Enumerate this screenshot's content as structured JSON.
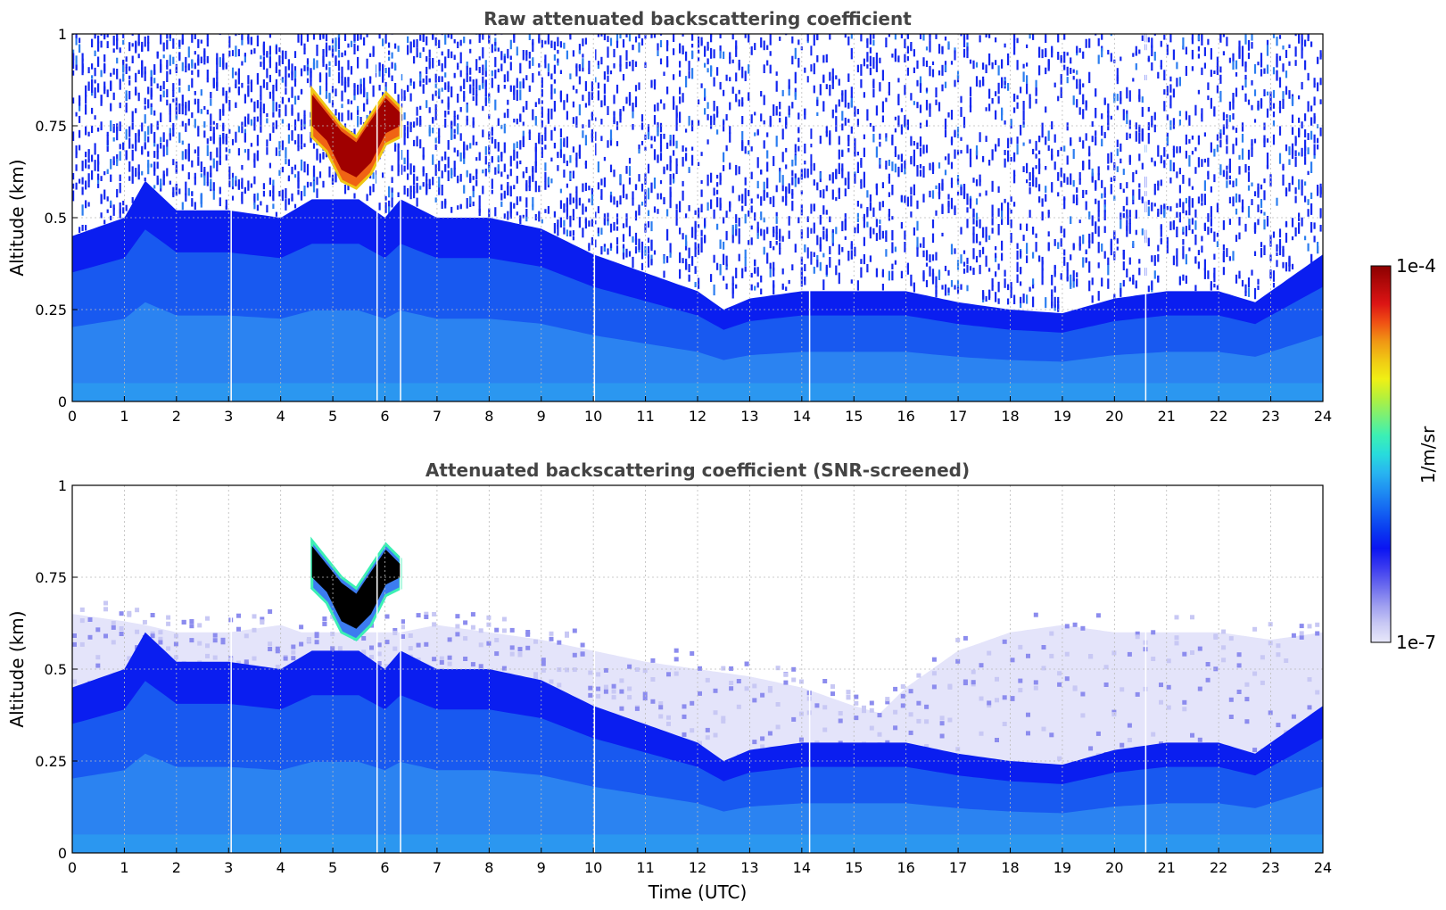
{
  "chart_data": [
    {
      "type": "heatmap",
      "title": "Raw attenuated backscattering coefficient",
      "xlabel": "",
      "ylabel": "Altitude (km)",
      "xlim": [
        0,
        24
      ],
      "ylim": [
        0,
        1
      ],
      "xticks": [
        0,
        1,
        2,
        3,
        4,
        5,
        6,
        7,
        8,
        9,
        10,
        11,
        12,
        13,
        14,
        15,
        16,
        17,
        18,
        19,
        20,
        21,
        22,
        23,
        24
      ],
      "yticks": [
        0,
        0.25,
        0.5,
        0.75,
        1
      ],
      "ytick_labels": [
        "0",
        "0.25",
        "0.5",
        "0.75",
        "1"
      ],
      "grid": true,
      "noise_above_layer": true,
      "boundary_layer_top_km": {
        "time": [
          0,
          1,
          1.4,
          2,
          3,
          4,
          4.6,
          5,
          5.5,
          6,
          6.3,
          7,
          8,
          9,
          10,
          11,
          12,
          12.5,
          13,
          14,
          15,
          16,
          17,
          18,
          19,
          20,
          21,
          22,
          22.7,
          23,
          24
        ],
        "height": [
          0.45,
          0.5,
          0.6,
          0.52,
          0.52,
          0.5,
          0.55,
          0.55,
          0.55,
          0.5,
          0.55,
          0.5,
          0.5,
          0.47,
          0.4,
          0.35,
          0.3,
          0.25,
          0.28,
          0.3,
          0.3,
          0.3,
          0.27,
          0.25,
          0.24,
          0.28,
          0.3,
          0.3,
          0.27,
          0.3,
          0.4
        ]
      },
      "cloud": {
        "time_start": 4.6,
        "time_end": 6.3,
        "top_km": [
          0.85,
          0.8,
          0.75,
          0.72,
          0.78,
          0.84,
          0.8
        ],
        "base_km": [
          0.72,
          0.68,
          0.6,
          0.58,
          0.62,
          0.7,
          0.72
        ]
      },
      "data_gaps_utc": [
        3.05,
        5.85,
        6.3,
        10.02,
        14.15,
        20.6
      ]
    },
    {
      "type": "heatmap",
      "title": "Attenuated backscattering coefficient (SNR-screened)",
      "xlabel": "Time (UTC)",
      "ylabel": "Altitude (km)",
      "xlim": [
        0,
        24
      ],
      "ylim": [
        0,
        1
      ],
      "xticks": [
        0,
        1,
        2,
        3,
        4,
        5,
        6,
        7,
        8,
        9,
        10,
        11,
        12,
        13,
        14,
        15,
        16,
        17,
        18,
        19,
        20,
        21,
        22,
        23,
        24
      ],
      "yticks": [
        0,
        0.25,
        0.5,
        0.75,
        1
      ],
      "ytick_labels": [
        "0",
        "0.25",
        "0.5",
        "0.75",
        "1"
      ],
      "grid": true,
      "noise_above_layer": false,
      "residual_layer_km": {
        "time": [
          0,
          1,
          1.4,
          2,
          3,
          4,
          4.4,
          6.3,
          7,
          8,
          9,
          10,
          11,
          12,
          13,
          14,
          15,
          15.5,
          16,
          17,
          18,
          19,
          20,
          21,
          22,
          23,
          24
        ],
        "height": [
          0.65,
          0.63,
          0.62,
          0.6,
          0.6,
          0.62,
          0.6,
          0.6,
          0.62,
          0.6,
          0.58,
          0.55,
          0.52,
          0.5,
          0.48,
          0.45,
          0.4,
          0.38,
          0.45,
          0.55,
          0.6,
          0.62,
          0.6,
          0.6,
          0.6,
          0.58,
          0.6
        ]
      },
      "boundary_layer_top_km": {
        "time": [
          0,
          1,
          1.4,
          2,
          3,
          4,
          4.6,
          5,
          5.5,
          6,
          6.3,
          7,
          8,
          9,
          10,
          11,
          12,
          12.5,
          13,
          14,
          15,
          16,
          17,
          18,
          19,
          20,
          21,
          22,
          22.7,
          23,
          24
        ],
        "height": [
          0.45,
          0.5,
          0.6,
          0.52,
          0.52,
          0.5,
          0.55,
          0.55,
          0.55,
          0.5,
          0.55,
          0.5,
          0.5,
          0.47,
          0.4,
          0.35,
          0.3,
          0.25,
          0.28,
          0.3,
          0.3,
          0.3,
          0.27,
          0.25,
          0.24,
          0.28,
          0.3,
          0.3,
          0.27,
          0.3,
          0.4
        ]
      },
      "cloud": {
        "time_start": 4.6,
        "time_end": 6.3,
        "top_km": [
          0.85,
          0.8,
          0.75,
          0.72,
          0.78,
          0.84,
          0.8
        ],
        "base_km": [
          0.72,
          0.68,
          0.6,
          0.58,
          0.62,
          0.7,
          0.72
        ]
      },
      "data_gaps_utc": [
        3.05,
        5.85,
        6.3,
        10.02,
        14.15,
        20.6
      ]
    }
  ],
  "colorbar": {
    "label": "1/m/sr",
    "max_label": "1e-4",
    "min_label": "1e-7",
    "colors": [
      "#e8e8fa",
      "#c8c8f4",
      "#9c9cf0",
      "#6a6aee",
      "#3a3af0",
      "#0a14f2",
      "#0a3cf0",
      "#1464f2",
      "#1e8cf2",
      "#28b4f0",
      "#28dcdc",
      "#3cf0b4",
      "#78f078",
      "#b4f03c",
      "#f0f014",
      "#f0c814",
      "#f09614",
      "#f05014",
      "#dc1414",
      "#b40a0a",
      "#8c0000"
    ]
  },
  "palette": {
    "white": "#ffffff",
    "noise_blue": "#1428f0",
    "layer_blue": "#0a1ef0",
    "layer_mid": "#1e6ef0",
    "layer_light": "#3ca6f2",
    "residual": "#c8c8f4",
    "residual_light": "#e4e4fa",
    "cloud_red": "#a00000",
    "cloud_orange": "#f06414",
    "cloud_black": "#000000"
  }
}
